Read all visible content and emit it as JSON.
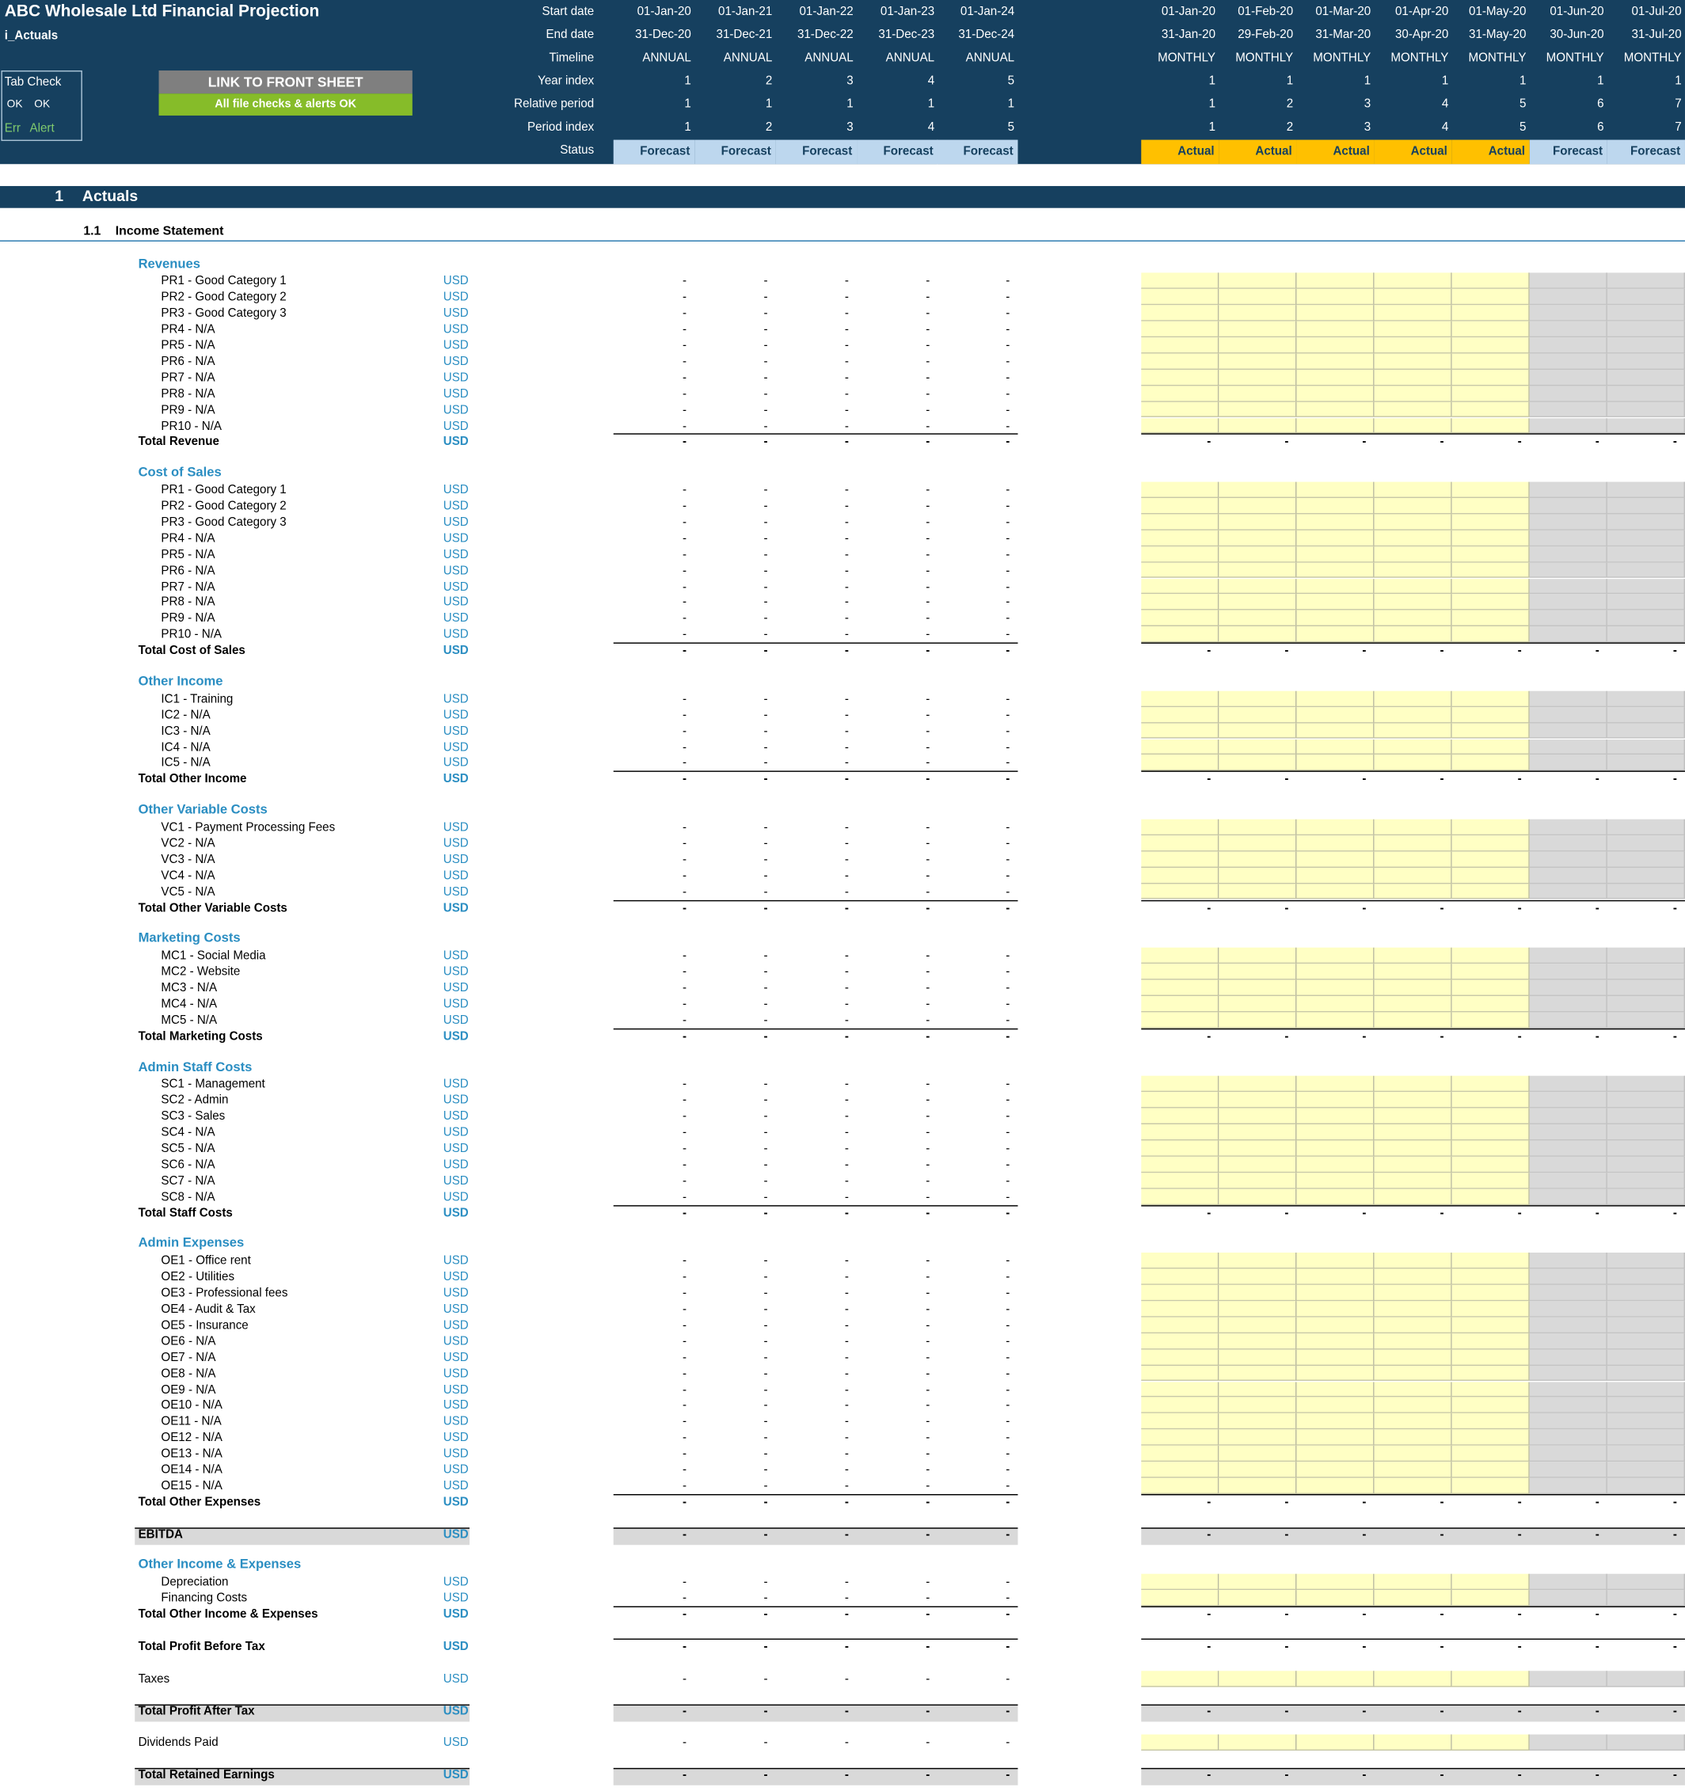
{
  "header": {
    "title": "ABC Wholesale Ltd Financial Projection",
    "sheet_name": "i_Actuals",
    "tab_check": {
      "label": "Tab Check",
      "ok1": "OK",
      "ok2": "OK",
      "err": "Err",
      "alert": "Alert"
    },
    "link_button": "LINK TO FRONT SHEET",
    "checks_status": "All file checks & alerts OK",
    "row_labels": [
      "Start date",
      "End date",
      "Timeline",
      "Year index",
      "Relative period",
      "Period index",
      "Status"
    ],
    "annual": [
      {
        "start": "01-Jan-20",
        "end": "31-Dec-20",
        "timeline": "ANNUAL",
        "year": "1",
        "rel": "1",
        "period": "1",
        "status": "Forecast"
      },
      {
        "start": "01-Jan-21",
        "end": "31-Dec-21",
        "timeline": "ANNUAL",
        "year": "2",
        "rel": "1",
        "period": "2",
        "status": "Forecast"
      },
      {
        "start": "01-Jan-22",
        "end": "31-Dec-22",
        "timeline": "ANNUAL",
        "year": "3",
        "rel": "1",
        "period": "3",
        "status": "Forecast"
      },
      {
        "start": "01-Jan-23",
        "end": "31-Dec-23",
        "timeline": "ANNUAL",
        "year": "4",
        "rel": "1",
        "period": "4",
        "status": "Forecast"
      },
      {
        "start": "01-Jan-24",
        "end": "31-Dec-24",
        "timeline": "ANNUAL",
        "year": "5",
        "rel": "1",
        "period": "5",
        "status": "Forecast"
      }
    ],
    "monthly": [
      {
        "start": "01-Jan-20",
        "end": "31-Jan-20",
        "timeline": "MONTHLY",
        "year": "1",
        "rel": "1",
        "period": "1",
        "status": "Actual"
      },
      {
        "start": "01-Feb-20",
        "end": "29-Feb-20",
        "timeline": "MONTHLY",
        "year": "1",
        "rel": "2",
        "period": "2",
        "status": "Actual"
      },
      {
        "start": "01-Mar-20",
        "end": "31-Mar-20",
        "timeline": "MONTHLY",
        "year": "1",
        "rel": "3",
        "period": "3",
        "status": "Actual"
      },
      {
        "start": "01-Apr-20",
        "end": "30-Apr-20",
        "timeline": "MONTHLY",
        "year": "1",
        "rel": "4",
        "period": "4",
        "status": "Actual"
      },
      {
        "start": "01-May-20",
        "end": "31-May-20",
        "timeline": "MONTHLY",
        "year": "1",
        "rel": "5",
        "period": "5",
        "status": "Actual"
      },
      {
        "start": "01-Jun-20",
        "end": "30-Jun-20",
        "timeline": "MONTHLY",
        "year": "1",
        "rel": "6",
        "period": "6",
        "status": "Forecast"
      },
      {
        "start": "01-Jul-20",
        "end": "31-Jul-20",
        "timeline": "MONTHLY",
        "year": "1",
        "rel": "7",
        "period": "7",
        "status": "Forecast"
      }
    ]
  },
  "section": {
    "number": "1",
    "title": "Actuals"
  },
  "subsection": {
    "number": "1.1",
    "title": "Income Statement"
  },
  "dash": "-",
  "unit": "USD",
  "groups": [
    {
      "title": "Revenues",
      "total": "Total Revenue",
      "items": [
        "PR1 - Good Category 1",
        "PR2 - Good Category 2",
        "PR3 - Good Category 3",
        "PR4 - N/A",
        "PR5 - N/A",
        "PR6 - N/A",
        "PR7 - N/A",
        "PR8 - N/A",
        "PR9 - N/A",
        "PR10 - N/A"
      ]
    },
    {
      "title": "Cost of Sales",
      "total": "Total Cost of Sales",
      "items": [
        "PR1 - Good Category 1",
        "PR2 - Good Category 2",
        "PR3 - Good Category 3",
        "PR4 - N/A",
        "PR5 - N/A",
        "PR6 - N/A",
        "PR7 - N/A",
        "PR8 - N/A",
        "PR9 - N/A",
        "PR10 - N/A"
      ]
    },
    {
      "title": "Other Income",
      "total": "Total Other Income",
      "items": [
        "IC1 - Training",
        "IC2 - N/A",
        "IC3 - N/A",
        "IC4 - N/A",
        "IC5 - N/A"
      ]
    },
    {
      "title": "Other Variable Costs",
      "total": "Total Other Variable Costs",
      "items": [
        "VC1 - Payment Processing Fees",
        "VC2 - N/A",
        "VC3 - N/A",
        "VC4 - N/A",
        "VC5 - N/A"
      ]
    },
    {
      "title": "Marketing Costs",
      "total": "Total Marketing Costs",
      "items": [
        "MC1 - Social Media",
        "MC2 - Website",
        "MC3 - N/A",
        "MC4 - N/A",
        "MC5 - N/A"
      ]
    },
    {
      "title": "Admin Staff Costs",
      "total": "Total Staff Costs",
      "items": [
        "SC1 - Management",
        "SC2 - Admin",
        "SC3 - Sales",
        "SC4 - N/A",
        "SC5 - N/A",
        "SC6 - N/A",
        "SC7 - N/A",
        "SC8 - N/A"
      ]
    },
    {
      "title": "Admin Expenses",
      "total": "Total Other Expenses",
      "items": [
        "OE1 - Office rent",
        "OE2 - Utilities",
        "OE3 - Professional fees",
        "OE4 - Audit & Tax",
        "OE5 - Insurance",
        "OE6 - N/A",
        "OE7 - N/A",
        "OE8 - N/A",
        "OE9 - N/A",
        "OE10 - N/A",
        "OE11 - N/A",
        "OE12 - N/A",
        "OE13 - N/A",
        "OE14 - N/A",
        "OE15 - N/A"
      ]
    }
  ],
  "ebitda": "EBITDA",
  "other_ie": {
    "title": "Other Income & Expenses",
    "total": "Total Other Income & Expenses",
    "items": [
      "Depreciation",
      "Financing Costs"
    ]
  },
  "profit_before_tax": "Total Profit Before Tax",
  "taxes": "Taxes",
  "profit_after_tax": "Total Profit After Tax",
  "dividends": "Dividends Paid",
  "retained": "Total Retained Earnings",
  "colors": {
    "header_bg": "#16405f",
    "forecast": "#bdd7ee",
    "actual": "#ffc000",
    "input": "#ffffc4",
    "locked": "#d9d9d9",
    "accent": "#2b8ec2",
    "ok_green": "#86bc29"
  }
}
